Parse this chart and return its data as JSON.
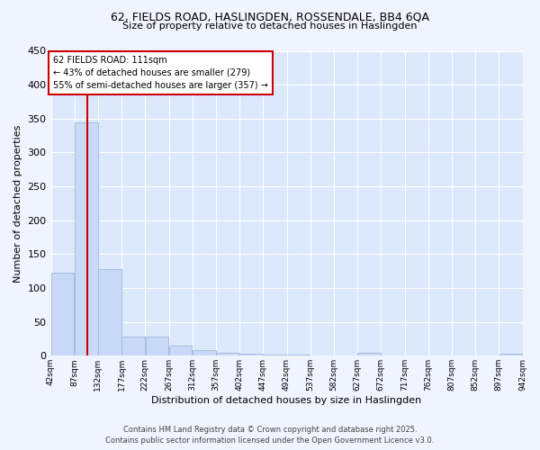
{
  "title_line1": "62, FIELDS ROAD, HASLINGDEN, ROSSENDALE, BB4 6QA",
  "title_line2": "Size of property relative to detached houses in Haslingden",
  "xlabel": "Distribution of detached houses by size in Haslingden",
  "ylabel": "Number of detached properties",
  "bar_edges": [
    42,
    87,
    132,
    177,
    222,
    267,
    312,
    357,
    402,
    447,
    492,
    537,
    582,
    627,
    672,
    717,
    762,
    807,
    852,
    897,
    942
  ],
  "bar_heights": [
    123,
    344,
    128,
    28,
    28,
    15,
    9,
    5,
    3,
    2,
    2,
    0,
    0,
    4,
    0,
    0,
    0,
    0,
    0,
    3
  ],
  "bar_color": "#c9daf8",
  "bar_edge_color": "#a0b8d8",
  "property_line_x": 111,
  "red_line_color": "#cc0000",
  "annotation_text": "62 FIELDS ROAD: 111sqm\n← 43% of detached houses are smaller (279)\n55% of semi-detached houses are larger (357) →",
  "annotation_box_color": "#ffffff",
  "annotation_box_edge": "#cc0000",
  "background_color": "#dce8fb",
  "grid_color": "#ffffff",
  "footer_line1": "Contains HM Land Registry data © Crown copyright and database right 2025.",
  "footer_line2": "Contains public sector information licensed under the Open Government Licence v3.0.",
  "ylim": [
    0,
    450
  ],
  "fig_bg": "#f0f4ff",
  "tick_labels": [
    "42sqm",
    "87sqm",
    "132sqm",
    "177sqm",
    "222sqm",
    "267sqm",
    "312sqm",
    "357sqm",
    "402sqm",
    "447sqm",
    "492sqm",
    "537sqm",
    "582sqm",
    "627sqm",
    "672sqm",
    "717sqm",
    "762sqm",
    "807sqm",
    "852sqm",
    "897sqm",
    "942sqm"
  ]
}
